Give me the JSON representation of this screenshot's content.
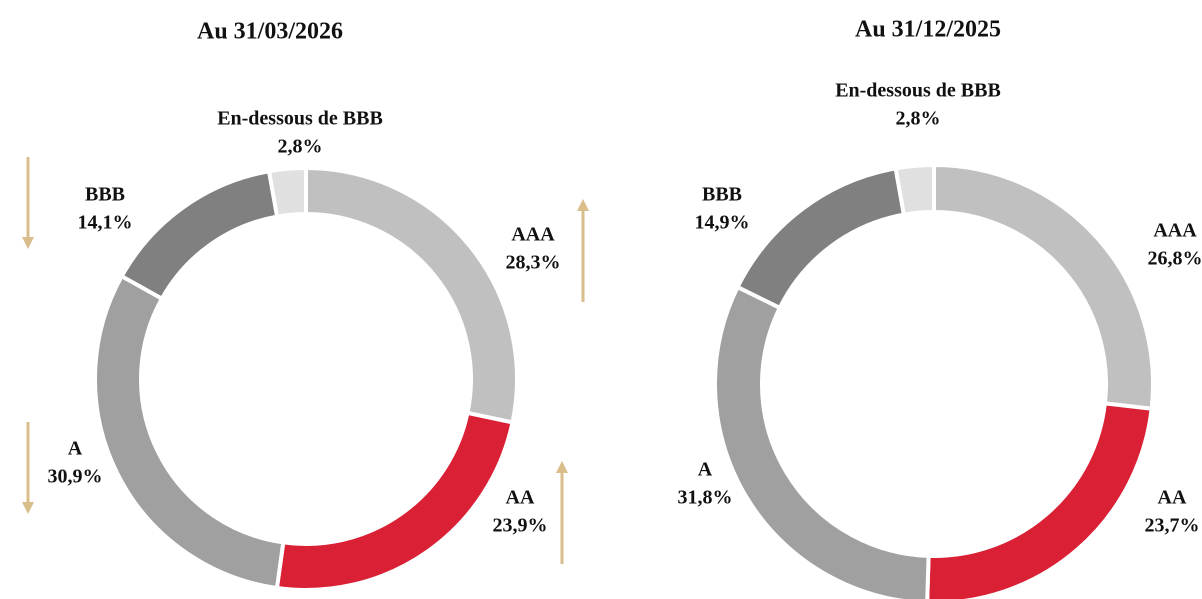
{
  "chart_data": [
    {
      "type": "donut",
      "title": "Au 31/03/2026",
      "categories": [
        "AAA",
        "AA",
        "A",
        "BBB",
        "En-dessous de BBB"
      ],
      "values": [
        28.3,
        23.9,
        30.9,
        14.1,
        2.8
      ],
      "value_labels": [
        "28,3%",
        "23,9%",
        "30,9%",
        "14,1%",
        "2,8%"
      ],
      "colors": [
        "#c0c0c0",
        "#d92035",
        "#a0a0a0",
        "#808080",
        "#e0e0e0"
      ]
    },
    {
      "type": "donut",
      "title": "Au 31/12/2025",
      "categories": [
        "AAA",
        "AA",
        "A",
        "BBB",
        "En-dessous de BBB"
      ],
      "values": [
        26.8,
        23.7,
        31.8,
        14.9,
        2.8
      ],
      "value_labels": [
        "26,8%",
        "23,7%",
        "31,8%",
        "14,9%",
        "2,8%"
      ],
      "colors": [
        "#c0c0c0",
        "#d92035",
        "#a0a0a0",
        "#808080",
        "#e0e0e0"
      ]
    }
  ]
}
